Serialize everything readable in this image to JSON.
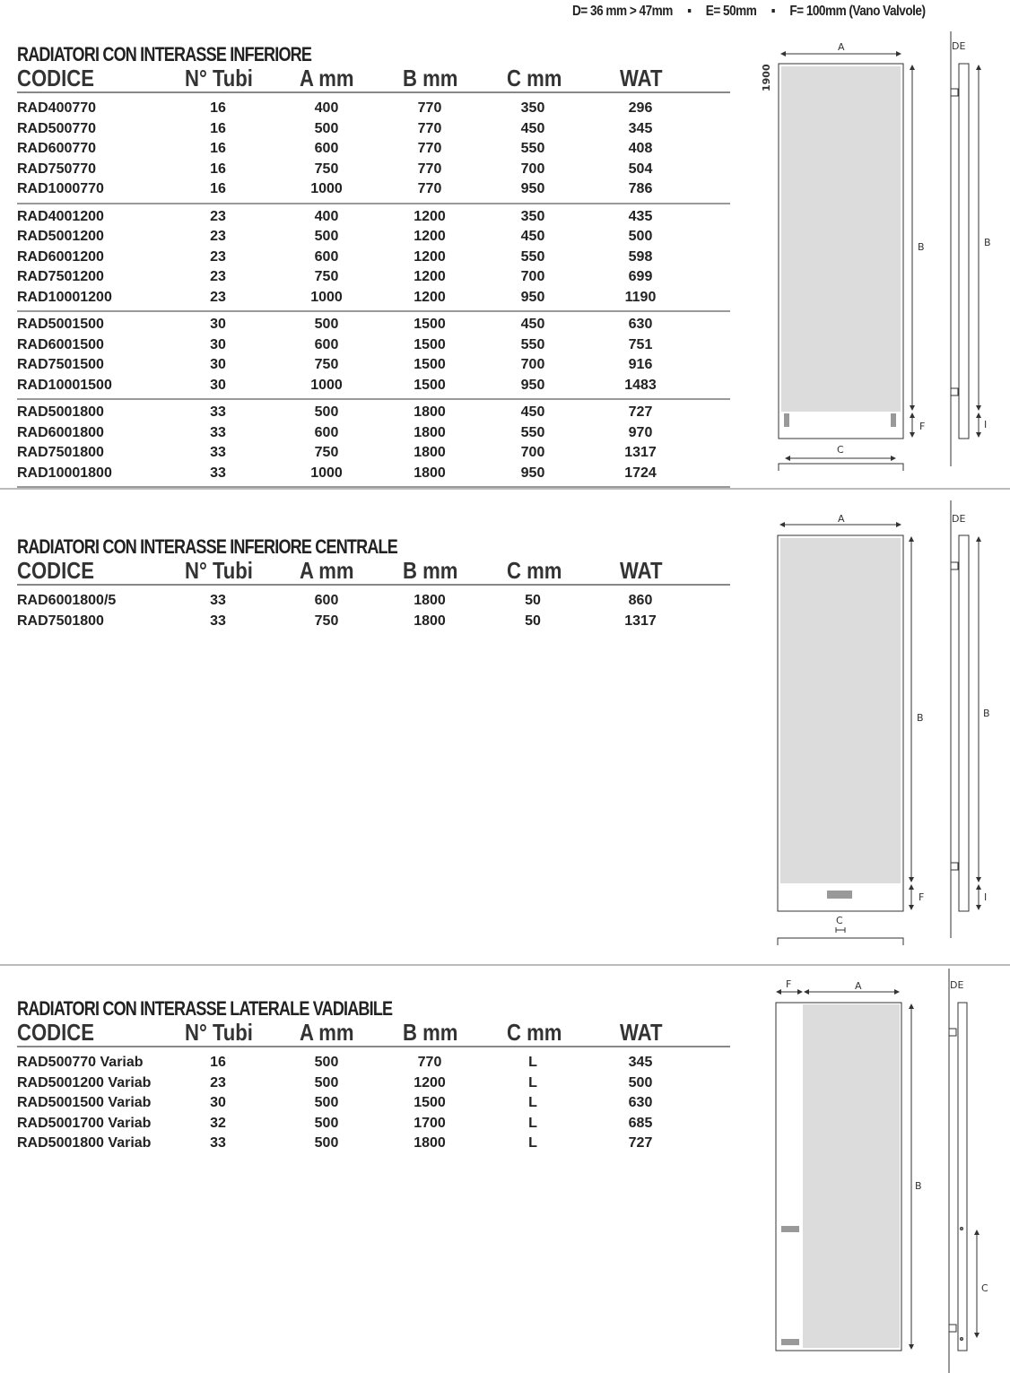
{
  "top_note": "D= 36 mm > 47mm     ▪     E= 50mm     ▪     F= 100mm (Vano Valvole)",
  "columns": [
    "CODICE",
    "N° Tubi",
    "A mm",
    "B mm",
    "C mm",
    "WAT"
  ],
  "sections": [
    {
      "title": "RADIATORI CON INTERASSE INFERIORE",
      "groups": [
        [
          [
            "RAD400770",
            "16",
            "400",
            "770",
            "350",
            "296"
          ],
          [
            "RAD500770",
            "16",
            "500",
            "770",
            "450",
            "345"
          ],
          [
            "RAD600770",
            "16",
            "600",
            "770",
            "550",
            "408"
          ],
          [
            "RAD750770",
            "16",
            "750",
            "770",
            "700",
            "504"
          ],
          [
            "RAD1000770",
            "16",
            "1000",
            "770",
            "950",
            "786"
          ]
        ],
        [
          [
            "RAD4001200",
            "23",
            "400",
            "1200",
            "350",
            "435"
          ],
          [
            "RAD5001200",
            "23",
            "500",
            "1200",
            "450",
            "500"
          ],
          [
            "RAD6001200",
            "23",
            "600",
            "1200",
            "550",
            "598"
          ],
          [
            "RAD7501200",
            "23",
            "750",
            "1200",
            "700",
            "699"
          ],
          [
            "RAD10001200",
            "23",
            "1000",
            "1200",
            "950",
            "1190"
          ]
        ],
        [
          [
            "RAD5001500",
            "30",
            "500",
            "1500",
            "450",
            "630"
          ],
          [
            "RAD6001500",
            "30",
            "600",
            "1500",
            "550",
            "751"
          ],
          [
            "RAD7501500",
            "30",
            "750",
            "1500",
            "700",
            "916"
          ],
          [
            "RAD10001500",
            "30",
            "1000",
            "1500",
            "950",
            "1483"
          ]
        ],
        [
          [
            "RAD5001800",
            "33",
            "500",
            "1800",
            "450",
            "727"
          ],
          [
            "RAD6001800",
            "33",
            "600",
            "1800",
            "550",
            "970"
          ],
          [
            "RAD7501800",
            "33",
            "750",
            "1800",
            "700",
            "1317"
          ],
          [
            "RAD10001800",
            "33",
            "1000",
            "1800",
            "950",
            "1724"
          ]
        ]
      ]
    },
    {
      "title": "RADIATORI CON INTERASSE INFERIORE CENTRALE",
      "groups": [
        [
          [
            "RAD6001800/5",
            "33",
            "600",
            "1800",
            "50",
            "860"
          ],
          [
            "RAD7501800",
            "33",
            "750",
            "1800",
            "50",
            "1317"
          ]
        ]
      ]
    },
    {
      "title": "RADIATORI CON INTERASSE LATERALE VADIABILE",
      "groups": [
        [
          [
            "RAD500770 Variab",
            "16",
            "500",
            "770",
            "L",
            "345"
          ],
          [
            "RAD5001200 Variab",
            "23",
            "500",
            "1200",
            "L",
            "500"
          ],
          [
            "RAD5001500 Variab",
            "30",
            "500",
            "1500",
            "L",
            "630"
          ],
          [
            "RAD5001700 Variab",
            "32",
            "500",
            "1700",
            "L",
            "685"
          ],
          [
            "RAD5001800 Variab",
            "33",
            "500",
            "1800",
            "L",
            "727"
          ]
        ]
      ]
    }
  ],
  "diagram_labels": {
    "a": "A",
    "b": "B",
    "c": "C",
    "f": "F",
    "i": "I",
    "de": "DE",
    "height": "1900"
  },
  "colors": {
    "panel_fill": "#dcdcdc",
    "slot": "#999999",
    "line": "#333333"
  }
}
